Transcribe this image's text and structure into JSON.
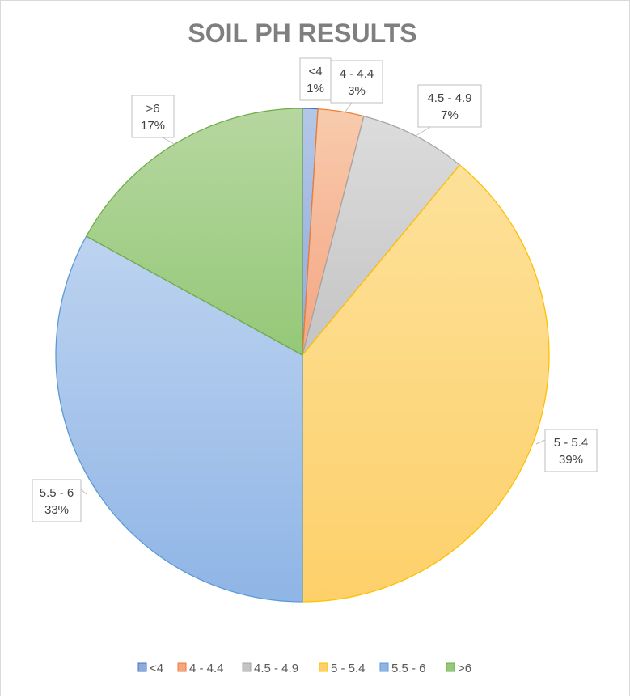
{
  "chart_data": {
    "type": "pie",
    "title": "SOIL PH RESULTS",
    "legend_position": "bottom",
    "slices": [
      {
        "name": "<4",
        "value": 1,
        "label": "1%",
        "fill_top": "#b4c7e7",
        "fill_bottom": "#8faadc",
        "stroke": "#4472c4"
      },
      {
        "name": "4 - 4.4",
        "value": 3,
        "label": "3%",
        "fill_top": "#f8cbad",
        "fill_bottom": "#f4a582",
        "stroke": "#ed7d31"
      },
      {
        "name": "4.5 - 4.9",
        "value": 7,
        "label": "7%",
        "fill_top": "#dcdcdc",
        "fill_bottom": "#c4c4c4",
        "stroke": "#a5a5a5"
      },
      {
        "name": "5 - 5.4",
        "value": 39,
        "label": "39%",
        "fill_top": "#fde19a",
        "fill_bottom": "#fdd06a",
        "stroke": "#ffc000"
      },
      {
        "name": "5.5 - 6",
        "value": 33,
        "label": "33%",
        "fill_top": "#bdd3f0",
        "fill_bottom": "#8fb5e6",
        "stroke": "#5b9bd5"
      },
      {
        "name": ">6",
        "value": 17,
        "label": "17%",
        "fill_top": "#b6d7a0",
        "fill_bottom": "#95c878",
        "stroke": "#70ad47"
      }
    ]
  }
}
